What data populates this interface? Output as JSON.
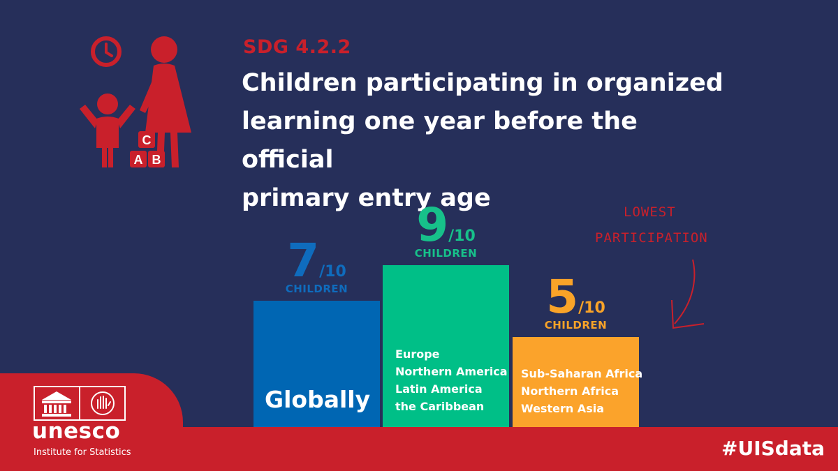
{
  "header": {
    "indicator": "SDG 4.2.2",
    "title_lines": [
      "Children participating in organized",
      "learning one year before the official",
      "primary entry age"
    ]
  },
  "illustration": {
    "block_letters": [
      "C",
      "A",
      "B"
    ]
  },
  "chart_data": {
    "type": "bar",
    "title": "Children participating in organized learning one year before the official primary entry age",
    "categories": [
      "Globally",
      "Europe, Northern America, Latin America, the Caribbean",
      "Sub-Saharan Africa, Northern Africa, Western Asia"
    ],
    "values": [
      7,
      9,
      5
    ],
    "unit_denominator": "/10",
    "unit_label": "CHILDREN",
    "ylim": [
      0,
      10
    ],
    "bars": [
      {
        "value": "7",
        "denominator": "/10",
        "label": "CHILDREN",
        "regions": [
          "Globally"
        ],
        "color": "#0066b3",
        "figure_color": "#0f6cbd"
      },
      {
        "value": "9",
        "denominator": "/10",
        "label": "CHILDREN",
        "regions": [
          "Europe",
          "Northern America",
          "Latin America",
          "the Caribbean"
        ],
        "color": "#00bf87",
        "figure_color": "#17c18a"
      },
      {
        "value": "5",
        "denominator": "/10",
        "label": "CHILDREN",
        "regions": [
          "Sub-Saharan Africa",
          "Northern Africa",
          "Western Asia"
        ],
        "color": "#fba32b",
        "figure_color": "#f9a328"
      }
    ],
    "annotation": {
      "lines": [
        "LOWEST",
        "PARTICIPATION"
      ]
    }
  },
  "footer": {
    "brand": "unesco",
    "subtitle": "Institute for Statistics",
    "hashtag": "#UISdata"
  },
  "colors": {
    "background": "#262f5a",
    "accent_red": "#c9202b",
    "white": "#ffffff"
  }
}
